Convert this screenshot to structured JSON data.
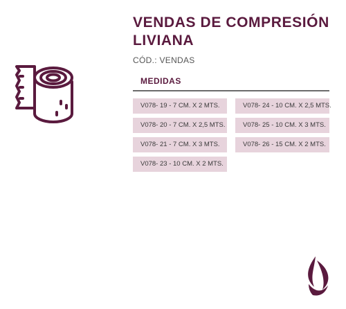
{
  "product": {
    "title": "VENDAS DE COMPRESIÓN LIVIANA",
    "code": "CÓD.: VENDAS",
    "icon": "bandage-roll-icon"
  },
  "measurements": {
    "section_title": "MEDIDAS",
    "options": [
      "V078- 19 - 7 CM. X 2 MTS.",
      "V078- 24 - 10 CM. X 2,5 MTS.",
      "V078- 20 - 7 CM. X 2,5 MTS.",
      "V078- 25 - 10 CM. X 3 MTS.",
      "V078- 21 - 7 CM. X 3  MTS.",
      "V078- 26 - 15 CM. X 2 MTS.",
      "V078- 23 - 10 CM. X 2 MTS."
    ]
  },
  "brand": {
    "icon": "flame-logo-icon"
  },
  "colors": {
    "primary": "#5a1a3e",
    "chip_background": "#e7d3dc",
    "text": "#3a3a3a",
    "divider": "#6b6b6b"
  }
}
